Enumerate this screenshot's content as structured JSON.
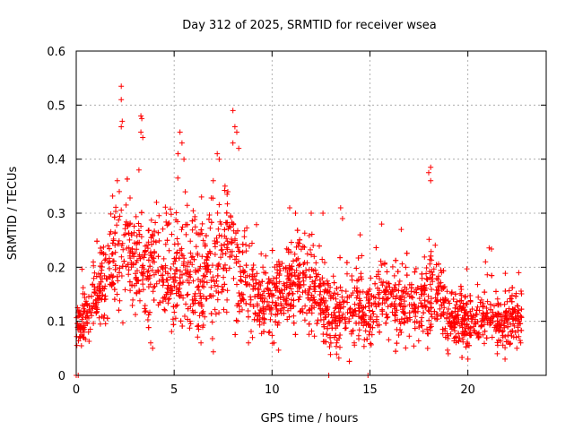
{
  "chart_data": {
    "type": "scatter",
    "title": "Day 312 of 2025, SRMTID for receiver wsea",
    "xlabel": "GPS time / hours",
    "ylabel": "SRMTID / TECUs",
    "xlim": [
      0,
      24
    ],
    "ylim": [
      0,
      0.6
    ],
    "xticks": [
      0,
      5,
      10,
      15,
      20
    ],
    "xtick_labels": [
      "0",
      "5",
      "10",
      "15",
      "20"
    ],
    "yticks": [
      0,
      0.1,
      0.2,
      0.3,
      0.4,
      0.5,
      0.6
    ],
    "ytick_labels": [
      "0",
      "0.1",
      "0.2",
      "0.3",
      "0.4",
      "0.5",
      "0.6"
    ],
    "grid": true,
    "marker": "+",
    "color": "#ff0000",
    "series": [
      {
        "name": "SRMTID",
        "points": [
          [
            0.0,
            0.0
          ],
          [
            0.1,
            0.0
          ],
          [
            12.9,
            0.0
          ],
          [
            14.9,
            0.0
          ]
        ],
        "trend": [
          [
            0,
            0.09
          ],
          [
            0.5,
            0.11
          ],
          [
            1,
            0.15
          ],
          [
            1.5,
            0.18
          ],
          [
            2,
            0.22
          ],
          [
            2.5,
            0.23
          ],
          [
            3,
            0.21
          ],
          [
            3.5,
            0.2
          ],
          [
            4,
            0.21
          ],
          [
            4.5,
            0.2
          ],
          [
            5,
            0.19
          ],
          [
            5.5,
            0.2
          ],
          [
            6,
            0.18
          ],
          [
            6.5,
            0.18
          ],
          [
            7,
            0.19
          ],
          [
            7.5,
            0.22
          ],
          [
            8,
            0.23
          ],
          [
            8.5,
            0.17
          ],
          [
            9,
            0.16
          ],
          [
            9.5,
            0.14
          ],
          [
            10,
            0.14
          ],
          [
            10.5,
            0.15
          ],
          [
            11,
            0.17
          ],
          [
            11.5,
            0.18
          ],
          [
            12,
            0.16
          ],
          [
            12.5,
            0.14
          ],
          [
            13,
            0.12
          ],
          [
            13.5,
            0.12
          ],
          [
            14,
            0.13
          ],
          [
            14.5,
            0.13
          ],
          [
            15,
            0.12
          ],
          [
            15.5,
            0.14
          ],
          [
            16,
            0.14
          ],
          [
            16.5,
            0.13
          ],
          [
            17,
            0.12
          ],
          [
            17.5,
            0.14
          ],
          [
            18,
            0.16
          ],
          [
            18.5,
            0.15
          ],
          [
            19,
            0.1
          ],
          [
            19.5,
            0.1
          ],
          [
            20,
            0.1
          ],
          [
            20.5,
            0.11
          ],
          [
            21,
            0.11
          ],
          [
            21.5,
            0.1
          ],
          [
            22,
            0.1
          ],
          [
            22.7,
            0.11
          ]
        ],
        "spread": [
          [
            0,
            0.02
          ],
          [
            1,
            0.04
          ],
          [
            2,
            0.06
          ],
          [
            3,
            0.06
          ],
          [
            5,
            0.06
          ],
          [
            7,
            0.07
          ],
          [
            8,
            0.06
          ],
          [
            9,
            0.04
          ],
          [
            11,
            0.05
          ],
          [
            13,
            0.04
          ],
          [
            15,
            0.04
          ],
          [
            17,
            0.04
          ],
          [
            18,
            0.05
          ],
          [
            19,
            0.03
          ],
          [
            22.7,
            0.03
          ]
        ],
        "spikes": [
          [
            2.3,
            0.535
          ],
          [
            2.3,
            0.51
          ],
          [
            2.35,
            0.47
          ],
          [
            2.3,
            0.46
          ],
          [
            3.3,
            0.48
          ],
          [
            3.35,
            0.475
          ],
          [
            3.3,
            0.45
          ],
          [
            3.4,
            0.44
          ],
          [
            5.3,
            0.45
          ],
          [
            5.4,
            0.43
          ],
          [
            5.2,
            0.41
          ],
          [
            5.5,
            0.4
          ],
          [
            7.2,
            0.41
          ],
          [
            7.3,
            0.4
          ],
          [
            8.0,
            0.49
          ],
          [
            8.1,
            0.46
          ],
          [
            8.2,
            0.45
          ],
          [
            8.0,
            0.43
          ],
          [
            8.3,
            0.42
          ],
          [
            18.1,
            0.385
          ],
          [
            18.0,
            0.375
          ],
          [
            18.1,
            0.36
          ],
          [
            2.1,
            0.36
          ],
          [
            2.2,
            0.34
          ],
          [
            3.2,
            0.38
          ],
          [
            4.1,
            0.32
          ],
          [
            4.6,
            0.3
          ],
          [
            6.4,
            0.33
          ],
          [
            7.0,
            0.36
          ],
          [
            7.6,
            0.35
          ],
          [
            10.9,
            0.31
          ],
          [
            11.2,
            0.3
          ],
          [
            12.0,
            0.3
          ],
          [
            12.6,
            0.3
          ],
          [
            13.5,
            0.31
          ],
          [
            13.6,
            0.29
          ],
          [
            14.5,
            0.26
          ],
          [
            15.6,
            0.28
          ],
          [
            16.6,
            0.27
          ],
          [
            20.9,
            0.21
          ],
          [
            22.6,
            0.19
          ]
        ],
        "dips": [
          [
            3.8,
            0.06
          ],
          [
            3.9,
            0.05
          ],
          [
            8.8,
            0.06
          ],
          [
            9.0,
            0.07
          ],
          [
            10.1,
            0.06
          ],
          [
            13.3,
            0.06
          ],
          [
            14.2,
            0.06
          ],
          [
            19.0,
            0.04
          ],
          [
            20.0,
            0.03
          ],
          [
            21.5,
            0.04
          ],
          [
            21.9,
            0.03
          ],
          [
            22.5,
            0.05
          ],
          [
            22.7,
            0.06
          ],
          [
            0.2,
            0.07
          ],
          [
            0.4,
            0.08
          ]
        ],
        "range": [
          0.0,
          22.75
        ],
        "count": 2600,
        "seed": 312
      }
    ]
  }
}
